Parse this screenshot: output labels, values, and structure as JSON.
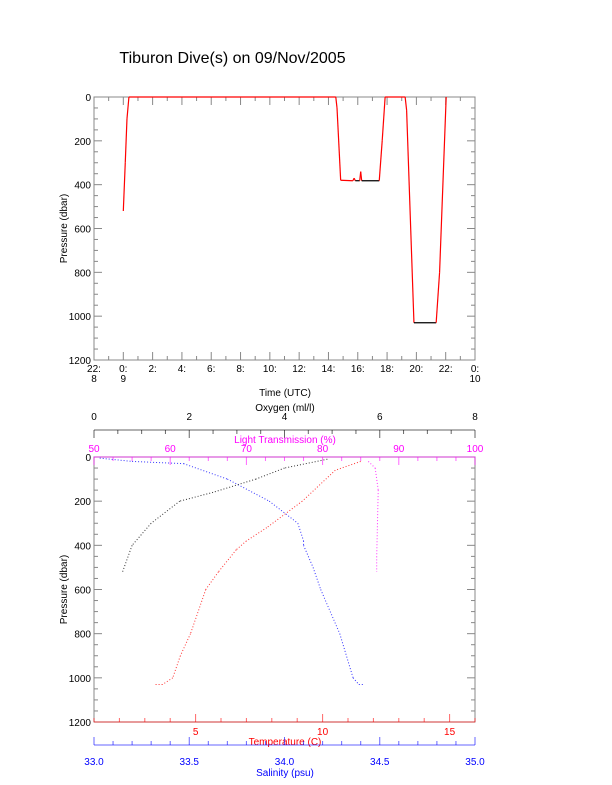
{
  "title": "Tiburon Dive(s) on 09/Nov/2005",
  "chart_data": [
    {
      "type": "line",
      "xlabel": "Time (UTC)",
      "ylabel": "Pressure (dbar)",
      "xlim": [
        "2005-11-08T22:00",
        "2005-11-10T00:00"
      ],
      "ylim": [
        1200,
        0
      ],
      "x_tick_labels": [
        [
          "22:",
          "8"
        ],
        [
          "0:",
          "9"
        ],
        [
          "2:",
          ""
        ],
        [
          "4:",
          ""
        ],
        [
          "6:",
          ""
        ],
        [
          "8:",
          ""
        ],
        [
          "10:",
          ""
        ],
        [
          "12:",
          ""
        ],
        [
          "14:",
          ""
        ],
        [
          "16:",
          ""
        ],
        [
          "18:",
          ""
        ],
        [
          "20:",
          ""
        ],
        [
          "22:",
          ""
        ],
        [
          "0:",
          "10"
        ]
      ],
      "y_tick_labels": [
        "0",
        "200",
        "400",
        "600",
        "800",
        "1000",
        "1200"
      ],
      "series_colors": {
        "descent": "#ff0000",
        "bottom": "#000000"
      },
      "series": [
        {
          "x": [
            "2005-11-09T00:00",
            "2005-11-09T00:08",
            "2005-11-09T00:15",
            "2005-11-09T00:23",
            "2005-11-09T14:30",
            "2005-11-09T14:35",
            "2005-11-09T14:50",
            "2005-11-09T15:40",
            "2005-11-09T15:45",
            "2005-11-09T15:50",
            "2005-11-09T16:08",
            "2005-11-09T16:12",
            "2005-11-09T16:16",
            "2005-11-09T17:28",
            "2005-11-09T17:40",
            "2005-11-09T17:52",
            "2005-11-09T19:14",
            "2005-11-09T19:20",
            "2005-11-09T19:50",
            "2005-11-09T21:21",
            "2005-11-09T21:35",
            "2005-11-09T22:02"
          ],
          "y": [
            520,
            300,
            100,
            0,
            0,
            50,
            380,
            382,
            370,
            382,
            382,
            340,
            382,
            382,
            200,
            0,
            0,
            60,
            1030,
            1030,
            800,
            0
          ]
        }
      ]
    },
    {
      "type": "scatter",
      "ylabel": "Pressure (dbar)",
      "ylim": [
        1200,
        0
      ],
      "y_tick_labels": [
        "0",
        "200",
        "400",
        "600",
        "800",
        "1000",
        "1200"
      ],
      "axes": {
        "oxygen": {
          "label": "Oxygen (ml/l)",
          "range": [
            0,
            8
          ],
          "ticks": [
            "0",
            "2",
            "4",
            "6",
            "8"
          ],
          "color": "#000000"
        },
        "light": {
          "label": "Light Transmission (%)",
          "range": [
            50,
            100
          ],
          "ticks": [
            "50",
            "60",
            "70",
            "80",
            "90",
            "100"
          ],
          "color": "#ff00ff"
        },
        "temperature": {
          "label": "Temperature (C)",
          "range": [
            1,
            16
          ],
          "ticks": [
            "5",
            "10",
            "15"
          ],
          "color": "#ff0000"
        },
        "salinity": {
          "label": "Salinity (psu)",
          "range": [
            33.0,
            35.0
          ],
          "ticks": [
            "33.0",
            "33.5",
            "34.0",
            "34.5",
            "35.0"
          ],
          "color": "#0000ff"
        }
      },
      "series": [
        {
          "axis": "temperature",
          "x": [
            11.5,
            10.5,
            9.2,
            7.8,
            7.0,
            7.0,
            6.6,
            5.9,
            5.4,
            4.8,
            4.4,
            4.1,
            3.7,
            3.4
          ],
          "y": [
            20,
            60,
            200,
            320,
            380,
            380,
            420,
            520,
            600,
            800,
            900,
            1000,
            1030,
            1030
          ]
        },
        {
          "axis": "salinity",
          "x": [
            33.03,
            33.2,
            33.47,
            33.7,
            33.92,
            34.07,
            34.1,
            34.1,
            34.15,
            34.19,
            34.29,
            34.36,
            34.39,
            34.42
          ],
          "y": [
            5,
            20,
            30,
            100,
            200,
            300,
            380,
            400,
            500,
            600,
            800,
            1000,
            1030,
            1030
          ]
        },
        {
          "axis": "oxygen",
          "x": [
            4.9,
            4.0,
            3.4,
            2.5,
            1.8,
            1.2,
            0.8,
            0.6
          ],
          "y": [
            10,
            50,
            100,
            160,
            200,
            300,
            400,
            520
          ]
        },
        {
          "axis": "light",
          "x": [
            86,
            86.9,
            87.3,
            87.2,
            87.1,
            87.1
          ],
          "y": [
            20,
            50,
            150,
            300,
            450,
            520
          ]
        }
      ]
    }
  ]
}
